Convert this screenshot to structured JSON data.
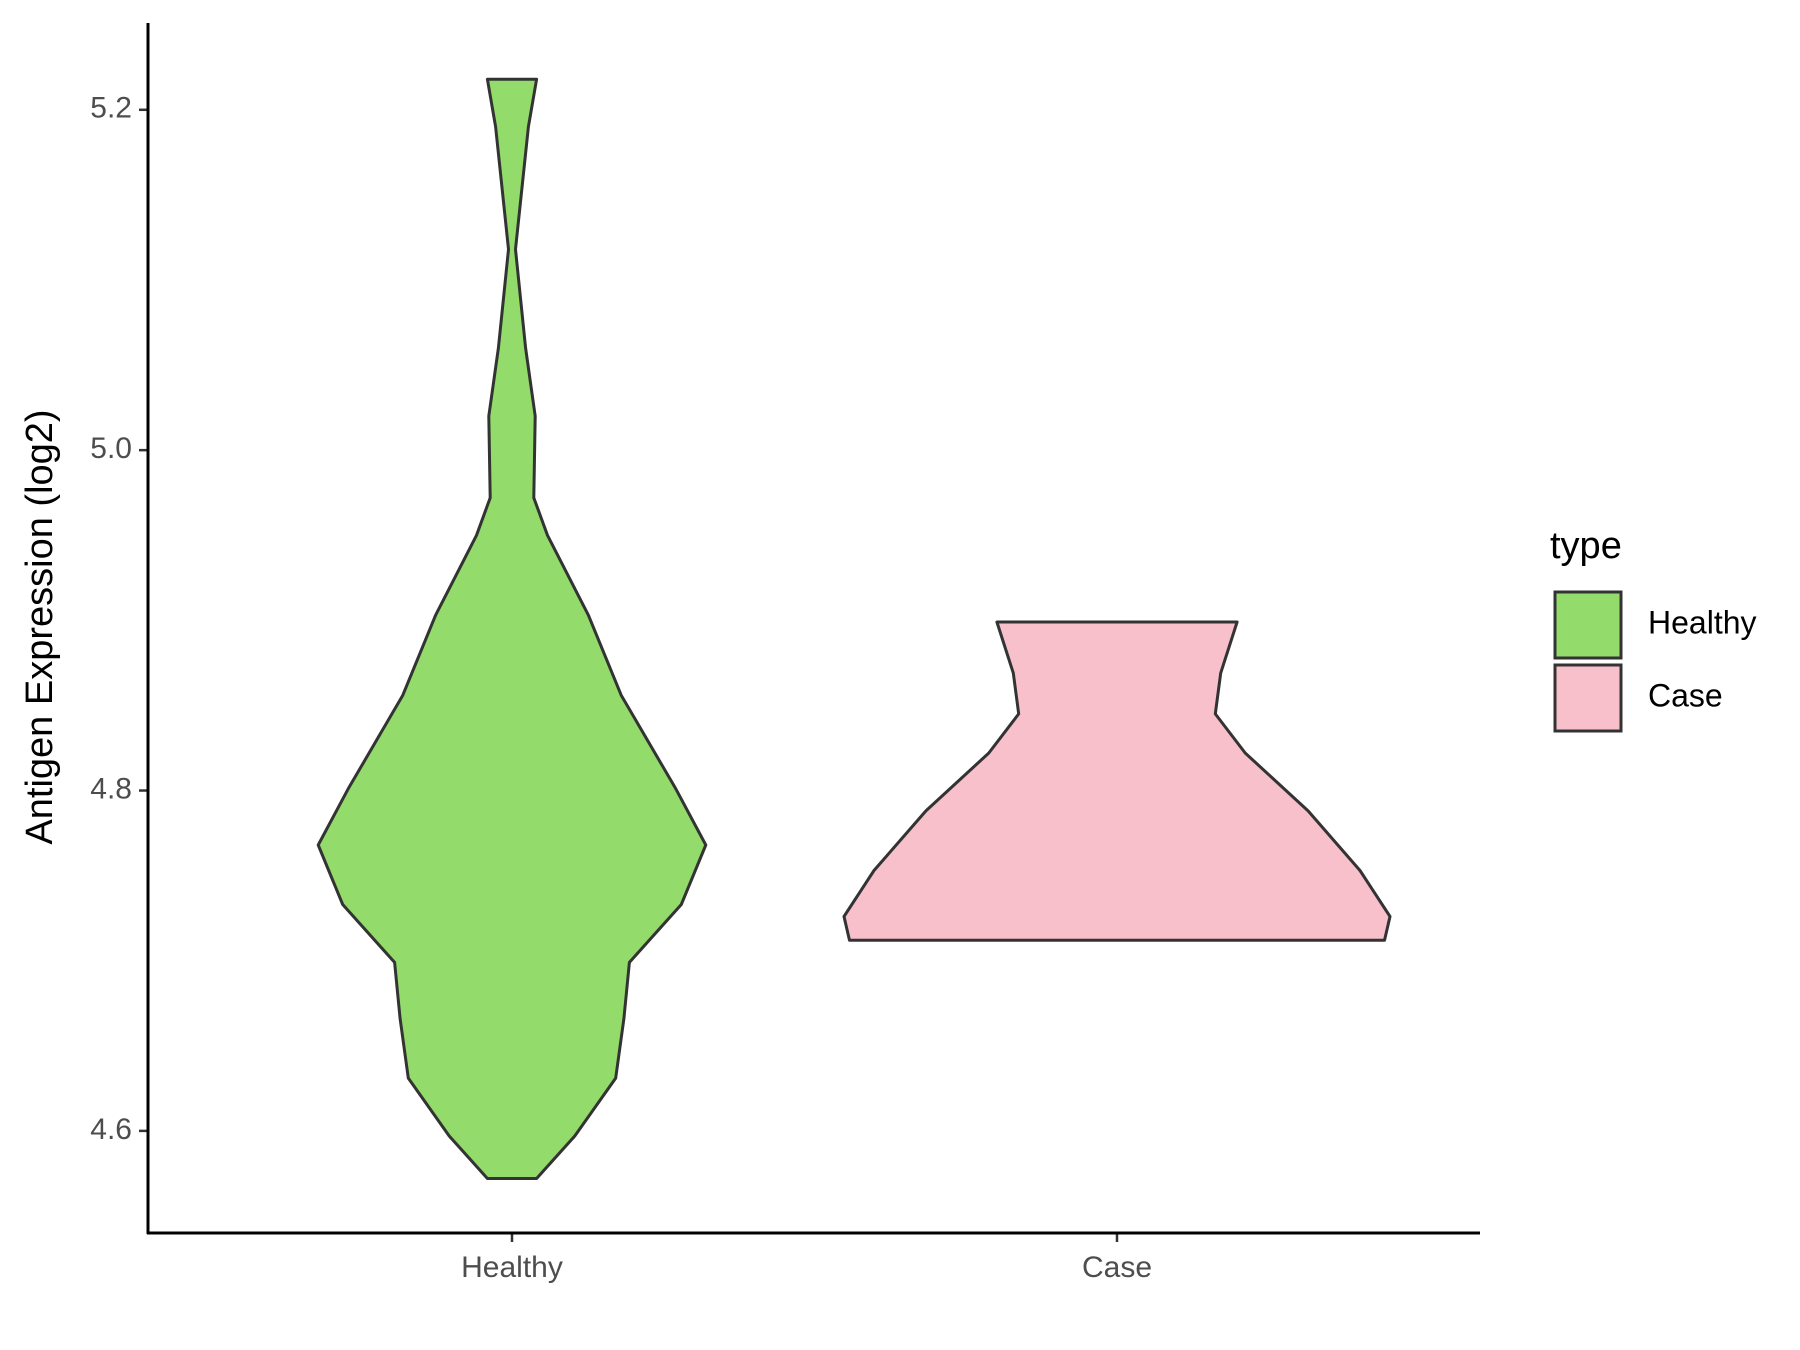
{
  "chart_data": {
    "type": "violin",
    "y_label": "Antigen Expression (log2)",
    "categories": [
      "Healthy",
      "Case"
    ],
    "ylim": [
      4.54,
      5.251
    ],
    "yticks": [
      {
        "value": 4.6,
        "label": "4.6"
      },
      {
        "value": 4.8,
        "label": "4.8"
      },
      {
        "value": 5.0,
        "label": "5.0"
      },
      {
        "value": 5.2,
        "label": "5.2"
      }
    ],
    "legend_title": "type",
    "legend_position": "right",
    "series": [
      {
        "name": "Healthy",
        "color": "#93dc6b",
        "y": [
          5.218,
          5.19,
          5.118,
          5.06,
          5.02,
          4.972,
          4.95,
          4.903,
          4.856,
          4.801,
          4.768,
          4.733,
          4.699,
          4.666,
          4.631,
          4.597,
          4.572
        ],
        "width": [
          0.09,
          0.06,
          0.013,
          0.05,
          0.085,
          0.08,
          0.13,
          0.28,
          0.4,
          0.6,
          0.71,
          0.62,
          0.43,
          0.41,
          0.38,
          0.23,
          0.09
        ]
      },
      {
        "name": "Case",
        "color": "#f7c0cb",
        "y": [
          4.899,
          4.869,
          4.845,
          4.822,
          4.788,
          4.753,
          4.726,
          4.712
        ],
        "width": [
          0.44,
          0.38,
          0.36,
          0.47,
          0.7,
          0.89,
          1.0,
          0.98
        ]
      }
    ]
  }
}
